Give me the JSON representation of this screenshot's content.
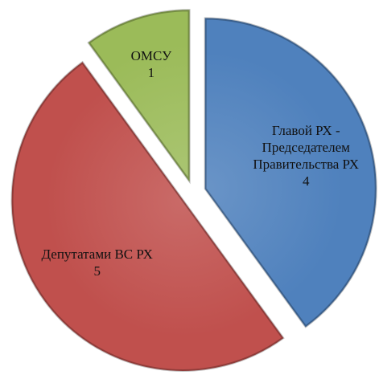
{
  "chart_data": {
    "type": "pie",
    "categories": [
      "Главой РХ - Председателем Правительства РХ",
      "Депутатами ВС РХ",
      "ОМСУ"
    ],
    "values": [
      4,
      5,
      1
    ],
    "colors": [
      "#4f81bd",
      "#c0504d",
      "#9bbb59"
    ],
    "exploded": true
  }
}
